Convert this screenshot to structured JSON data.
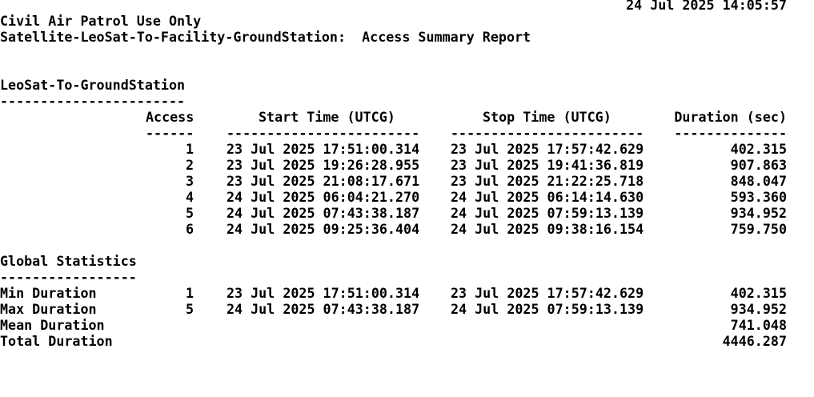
{
  "header": {
    "timestamp": "24 Jul 2025 14:05:57",
    "classification": "Civil Air Patrol Use Only",
    "report_title": "Satellite-LeoSat-To-Facility-GroundStation:  Access Summary Report"
  },
  "section": {
    "title": "LeoSat-To-GroundStation",
    "underline": "-----------------------"
  },
  "columns": {
    "access": "Access",
    "start": "Start Time (UTCG)",
    "stop": "Stop Time (UTCG)",
    "duration": "Duration (sec)",
    "access_rule": "------",
    "start_rule": "------------------------",
    "stop_rule": "------------------------",
    "duration_rule": "--------------"
  },
  "accesses": [
    {
      "access": "1",
      "start": "23 Jul 2025 17:51:00.314",
      "stop": "23 Jul 2025 17:57:42.629",
      "duration": "402.315"
    },
    {
      "access": "2",
      "start": "23 Jul 2025 19:26:28.955",
      "stop": "23 Jul 2025 19:41:36.819",
      "duration": "907.863"
    },
    {
      "access": "3",
      "start": "23 Jul 2025 21:08:17.671",
      "stop": "23 Jul 2025 21:22:25.718",
      "duration": "848.047"
    },
    {
      "access": "4",
      "start": "24 Jul 2025 06:04:21.270",
      "stop": "24 Jul 2025 06:14:14.630",
      "duration": "593.360"
    },
    {
      "access": "5",
      "start": "24 Jul 2025 07:43:38.187",
      "stop": "24 Jul 2025 07:59:13.139",
      "duration": "934.952"
    },
    {
      "access": "6",
      "start": "24 Jul 2025 09:25:36.404",
      "stop": "24 Jul 2025 09:38:16.154",
      "duration": "759.750"
    }
  ],
  "global_stats": {
    "title": "Global Statistics",
    "underline": "-----------------",
    "min": {
      "label": "Min Duration",
      "access": "1",
      "start": "23 Jul 2025 17:51:00.314",
      "stop": "23 Jul 2025 17:57:42.629",
      "duration": "402.315"
    },
    "max": {
      "label": "Max Duration",
      "access": "5",
      "start": "24 Jul 2025 07:43:38.187",
      "stop": "24 Jul 2025 07:59:13.139",
      "duration": "934.952"
    },
    "mean": {
      "label": "Mean Duration",
      "duration": "741.048"
    },
    "total": {
      "label": "Total Duration",
      "duration": "4446.287"
    }
  }
}
